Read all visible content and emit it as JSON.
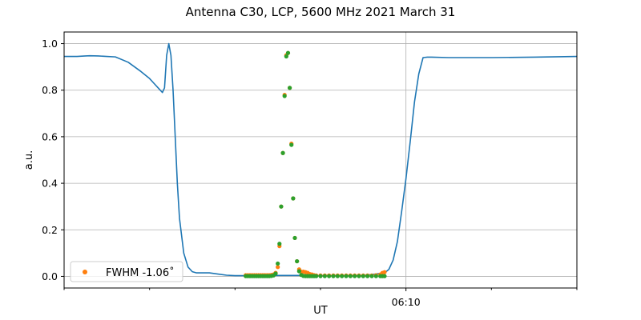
{
  "chart_data": {
    "type": "line",
    "title": "Antenna C30, LCP, 5600 MHz 2021 March 31",
    "xlabel": "UT",
    "ylabel": "a.u.",
    "xlim": [
      0,
      120
    ],
    "ylim": [
      -0.05,
      1.05
    ],
    "x_unit": "minutes (axis labelled in UT)",
    "x_tick_labels": [
      {
        "x": 80,
        "label": "06:10"
      }
    ],
    "x_minor_ticks": [
      0,
      20,
      40,
      60,
      100,
      120
    ],
    "y_ticks": [
      0.0,
      0.2,
      0.4,
      0.6,
      0.8,
      1.0
    ],
    "y_tick_labels": [
      "0.0",
      "0.2",
      "0.4",
      "0.6",
      "0.8",
      "1.0"
    ],
    "grid": true,
    "legend_position": "lower-left",
    "colors": {
      "line": "#1f77b4",
      "fit": "#ff7f0e",
      "points": "#2ca02c"
    },
    "series": [
      {
        "style": "line",
        "x": [
          0,
          3,
          5,
          6,
          8,
          10,
          12,
          15,
          18,
          20,
          21,
          22,
          23,
          23.5,
          24,
          24.5,
          25,
          25.5,
          26,
          26.5,
          27,
          28,
          29,
          30,
          31,
          32,
          34,
          36,
          38,
          40,
          44,
          48,
          50,
          52,
          54,
          55,
          56,
          57,
          58,
          59,
          60,
          61,
          61.5,
          62,
          63,
          64,
          66,
          70,
          75,
          76,
          77,
          78,
          79,
          80,
          81,
          82,
          83,
          84,
          85,
          86,
          90,
          100,
          110,
          120
        ],
        "y": [
          0.945,
          0.945,
          0.947,
          0.948,
          0.947,
          0.945,
          0.943,
          0.92,
          0.88,
          0.85,
          0.83,
          0.81,
          0.79,
          0.81,
          0.95,
          1.0,
          0.95,
          0.8,
          0.6,
          0.4,
          0.25,
          0.1,
          0.04,
          0.02,
          0.015,
          0.015,
          0.015,
          0.01,
          0.005,
          0.003,
          0.003,
          0.003,
          0.004,
          0.004,
          0.004,
          0.004,
          0.005,
          0.003,
          0.003,
          0.003,
          0.004,
          0.004,
          0.004,
          0.003,
          0.003,
          0.003,
          0.003,
          0.003,
          0.015,
          0.03,
          0.07,
          0.15,
          0.28,
          0.42,
          0.58,
          0.75,
          0.87,
          0.94,
          0.942,
          0.942,
          0.94,
          0.94,
          0.942,
          0.945
        ]
      },
      {
        "name": "FWHM -1.06$^\\circ$",
        "style": "scatter",
        "x": [
          42.5,
          43,
          43.5,
          44,
          44.5,
          45,
          45.5,
          46,
          46.5,
          47,
          47.5,
          48,
          48.5,
          49,
          49.5,
          50,
          50.4,
          50.8,
          51.2,
          51.6,
          52,
          52.4,
          52.8,
          53.2,
          53.6,
          54,
          54.5,
          55,
          55.5,
          56,
          56.5,
          57,
          57.5,
          58,
          58.5,
          59,
          60,
          61,
          62,
          63,
          64,
          65,
          66,
          67,
          68,
          69,
          70,
          71,
          72,
          73,
          74,
          74.5,
          75
        ],
        "y": [
          0.005,
          0.005,
          0.005,
          0.005,
          0.005,
          0.005,
          0.005,
          0.005,
          0.005,
          0.005,
          0.005,
          0.005,
          0.006,
          0.008,
          0.015,
          0.04,
          0.13,
          0.3,
          0.53,
          0.78,
          0.95,
          0.96,
          0.81,
          0.57,
          0.335,
          0.165,
          0.065,
          0.03,
          0.02,
          0.02,
          0.018,
          0.015,
          0.01,
          0.008,
          0.005,
          0.004,
          0.004,
          0.004,
          0.004,
          0.004,
          0.004,
          0.004,
          0.004,
          0.004,
          0.004,
          0.004,
          0.004,
          0.004,
          0.004,
          0.005,
          0.008,
          0.015,
          0.018
        ]
      },
      {
        "style": "scatter",
        "x": [
          42.5,
          43,
          43.5,
          44,
          44.5,
          45,
          45.5,
          46,
          46.5,
          47,
          47.5,
          48,
          48.5,
          49,
          49.5,
          50,
          50.4,
          50.8,
          51.2,
          51.6,
          52,
          52.4,
          52.8,
          53.2,
          53.6,
          54,
          54.5,
          55,
          55.5,
          56,
          56.5,
          57,
          57.5,
          58,
          58.5,
          59,
          60,
          61,
          62,
          63,
          64,
          65,
          66,
          67,
          68,
          69,
          70,
          71,
          72,
          73,
          74,
          74.5,
          75
        ],
        "y": [
          0.001,
          0.001,
          0.001,
          0.001,
          0.001,
          0.001,
          0.001,
          0.001,
          0.001,
          0.001,
          0.001,
          0.001,
          0.002,
          0.004,
          0.012,
          0.055,
          0.14,
          0.3,
          0.53,
          0.775,
          0.945,
          0.96,
          0.81,
          0.565,
          0.335,
          0.165,
          0.065,
          0.022,
          0.006,
          0.002,
          0.001,
          0.001,
          0.001,
          0.001,
          0.001,
          0.001,
          0.001,
          0.001,
          0.001,
          0.001,
          0.001,
          0.001,
          0.001,
          0.001,
          0.001,
          0.001,
          0.001,
          0.001,
          0.001,
          0.001,
          0.001,
          0.001,
          0.001
        ]
      }
    ],
    "legend": [
      {
        "series_index": 1,
        "label": "FWHM -1.06˚"
      }
    ]
  }
}
